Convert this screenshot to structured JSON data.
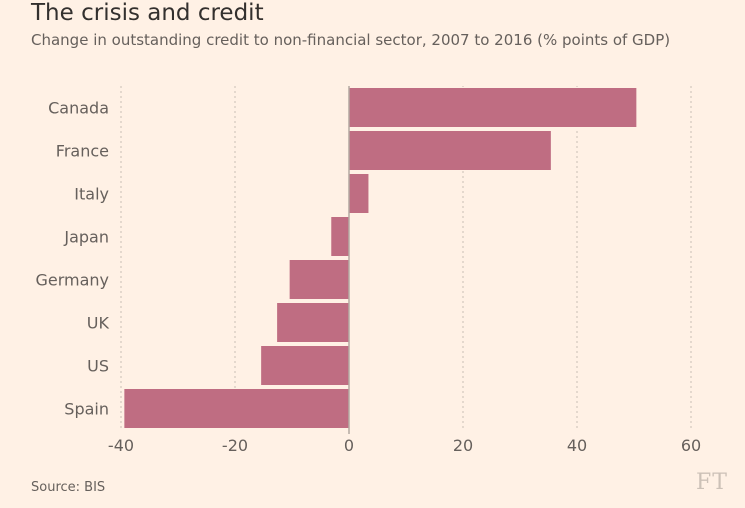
{
  "title": "The crisis and credit",
  "subtitle": "Change in outstanding credit to non-financial sector, 2007 to 2016 (% points of GDP)",
  "source": "Source: BIS",
  "logo": "FT",
  "colors": {
    "background": "#fff1e5",
    "bar": "#bf6d82",
    "bar_stroke": "#fff1e5",
    "grid": "#c9beb5",
    "zero_line": "#b3a9a1",
    "label": "#66605c"
  },
  "chart_data": {
    "type": "bar",
    "orientation": "horizontal",
    "categories": [
      "Canada",
      "France",
      "Italy",
      "Japan",
      "Germany",
      "UK",
      "US",
      "Spain"
    ],
    "values": [
      50.5,
      35.5,
      3.5,
      -3.2,
      -10.5,
      -12.7,
      -15.5,
      -39.5
    ],
    "xlim": [
      -40,
      60
    ],
    "xticks": [
      -40,
      -20,
      0,
      20,
      40,
      60
    ],
    "xtick_labels": [
      "-40",
      "-20",
      "0",
      "20",
      "40",
      "60"
    ],
    "grid": true,
    "legend": "none"
  }
}
